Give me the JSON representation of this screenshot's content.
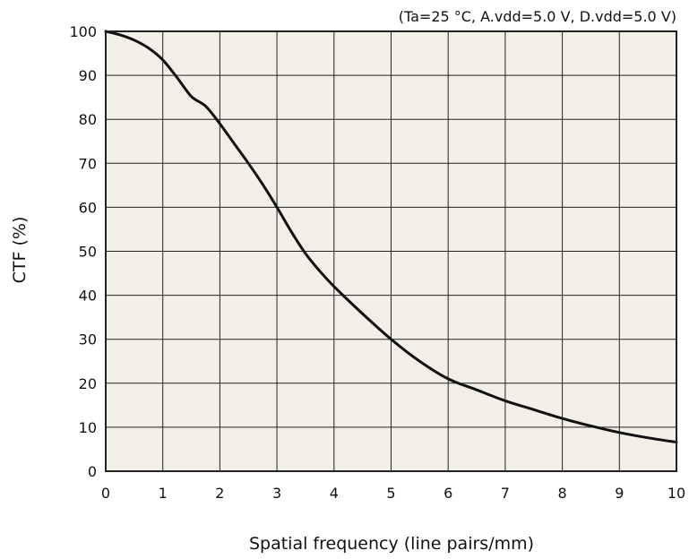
{
  "chart_data": {
    "type": "line",
    "title": "",
    "conditions": "(Ta=25 °C, A.vdd=5.0 V, D.vdd=5.0 V)",
    "xlabel": "Spatial frequency (line pairs/mm)",
    "ylabel": "CTF (%)",
    "xlim": [
      0,
      10
    ],
    "ylim": [
      0,
      100
    ],
    "xticks": [
      0,
      1,
      2,
      3,
      4,
      5,
      6,
      7,
      8,
      9,
      10
    ],
    "yticks": [
      0,
      10,
      20,
      30,
      40,
      50,
      60,
      70,
      80,
      90,
      100
    ],
    "grid": true,
    "colors": {
      "plot_background": "#f1efe6",
      "grid": "#222222",
      "line": "#111111"
    },
    "series": [
      {
        "x": [
          0,
          0.25,
          0.5,
          0.75,
          1.0,
          1.25,
          1.5,
          1.75,
          2.0,
          2.25,
          2.5,
          2.75,
          3.0,
          3.25,
          3.5,
          3.75,
          4.0,
          4.5,
          5.0,
          5.5,
          6.0,
          6.5,
          7.0,
          7.5,
          8.0,
          8.5,
          9.0,
          9.5,
          10.0
        ],
        "y": [
          100,
          99.2,
          98,
          96.2,
          93.5,
          89.5,
          85.2,
          83.0,
          79.0,
          74.5,
          70.0,
          65.2,
          60.0,
          54.5,
          49.5,
          45.5,
          42.0,
          35.8,
          30.0,
          25.0,
          21.0,
          18.5,
          16.0,
          14.0,
          12.0,
          10.3,
          8.8,
          7.6,
          6.6
        ]
      }
    ]
  }
}
